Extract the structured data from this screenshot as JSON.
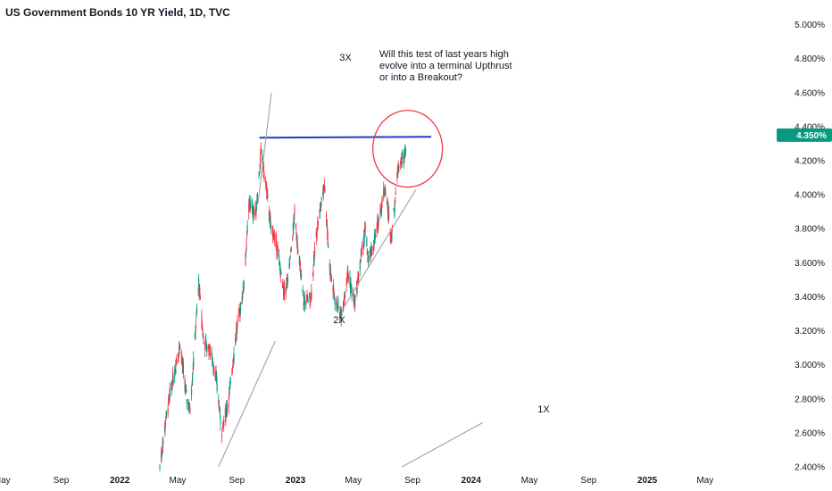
{
  "title": "US Government Bonds 10 YR Yield, 1D, TVC",
  "chart_data": {
    "type": "candlestick",
    "title": "US Government Bonds 10 YR Yield, 1D, TVC",
    "y_axis": {
      "position": "right",
      "range": [
        2.4,
        5.05
      ],
      "ticks": [
        {
          "value": 5.0,
          "label": "5.000%"
        },
        {
          "value": 4.8,
          "label": "4.800%"
        },
        {
          "value": 4.6,
          "label": "4.600%"
        },
        {
          "value": 4.4,
          "label": "4.400%"
        },
        {
          "value": 4.2,
          "label": "4.200%"
        },
        {
          "value": 4.0,
          "label": "4.000%"
        },
        {
          "value": 3.8,
          "label": "3.800%"
        },
        {
          "value": 3.6,
          "label": "3.600%"
        },
        {
          "value": 3.4,
          "label": "3.400%"
        },
        {
          "value": 3.2,
          "label": "3.200%"
        },
        {
          "value": 3.0,
          "label": "3.000%"
        },
        {
          "value": 2.8,
          "label": "2.800%"
        },
        {
          "value": 2.6,
          "label": "2.600%"
        },
        {
          "value": 2.4,
          "label": "2.400%"
        }
      ]
    },
    "x_axis": {
      "range": [
        "2021-04-01",
        "2025-06-15"
      ],
      "ticks": [
        {
          "date": "2021-05-01",
          "label": "May",
          "year": false
        },
        {
          "date": "2021-09-01",
          "label": "Sep",
          "year": false
        },
        {
          "date": "2022-01-01",
          "label": "2022",
          "year": true
        },
        {
          "date": "2022-05-01",
          "label": "May",
          "year": false
        },
        {
          "date": "2022-09-01",
          "label": "Sep",
          "year": false
        },
        {
          "date": "2023-01-01",
          "label": "2023",
          "year": true
        },
        {
          "date": "2023-05-01",
          "label": "May",
          "year": false
        },
        {
          "date": "2023-09-01",
          "label": "Sep",
          "year": false
        },
        {
          "date": "2024-01-01",
          "label": "2024",
          "year": true
        },
        {
          "date": "2024-05-01",
          "label": "May",
          "year": false
        },
        {
          "date": "2024-09-01",
          "label": "Sep",
          "year": false
        },
        {
          "date": "2025-01-01",
          "label": "2025",
          "year": true
        },
        {
          "date": "2025-05-01",
          "label": "May",
          "year": false
        }
      ]
    },
    "price_path": [
      [
        "2022-03-25",
        2.4
      ],
      [
        "2022-04-08",
        2.7
      ],
      [
        "2022-04-20",
        2.9
      ],
      [
        "2022-05-06",
        3.12
      ],
      [
        "2022-05-20",
        2.8
      ],
      [
        "2022-05-27",
        2.74
      ],
      [
        "2022-06-14",
        3.48
      ],
      [
        "2022-06-24",
        3.13
      ],
      [
        "2022-07-08",
        3.08
      ],
      [
        "2022-07-20",
        2.93
      ],
      [
        "2022-08-01",
        2.6
      ],
      [
        "2022-08-15",
        2.79
      ],
      [
        "2022-08-31",
        3.19
      ],
      [
        "2022-09-15",
        3.45
      ],
      [
        "2022-09-27",
        3.95
      ],
      [
        "2022-10-10",
        3.88
      ],
      [
        "2022-10-21",
        4.24
      ],
      [
        "2022-11-01",
        4.05
      ],
      [
        "2022-11-10",
        3.82
      ],
      [
        "2022-11-23",
        3.7
      ],
      [
        "2022-12-07",
        3.42
      ],
      [
        "2022-12-16",
        3.48
      ],
      [
        "2022-12-30",
        3.88
      ],
      [
        "2023-01-18",
        3.37
      ],
      [
        "2023-02-02",
        3.4
      ],
      [
        "2023-02-15",
        3.81
      ],
      [
        "2023-03-02",
        4.06
      ],
      [
        "2023-03-13",
        3.57
      ],
      [
        "2023-03-24",
        3.38
      ],
      [
        "2023-04-06",
        3.29
      ],
      [
        "2023-04-20",
        3.54
      ],
      [
        "2023-05-04",
        3.36
      ],
      [
        "2023-05-18",
        3.65
      ],
      [
        "2023-05-26",
        3.8
      ],
      [
        "2023-06-01",
        3.6
      ],
      [
        "2023-06-15",
        3.73
      ],
      [
        "2023-07-06",
        4.05
      ],
      [
        "2023-07-19",
        3.75
      ],
      [
        "2023-08-03",
        4.18
      ],
      [
        "2023-08-15",
        4.22
      ],
      [
        "2023-08-21",
        4.34
      ]
    ],
    "last_value": {
      "value": 4.35,
      "label": "4.350%",
      "color": "#089981"
    },
    "candle_colors": {
      "up": "#089981",
      "down": "#f23645"
    },
    "grid": false,
    "annotations": [
      {
        "type": "trendline",
        "name": "resistance-line",
        "from": [
          "2022-10-18",
          4.335
        ],
        "to": [
          "2023-10-10",
          4.34
        ],
        "color": "#1e3ec8"
      },
      {
        "type": "trendline",
        "name": "trendline-3x",
        "from": [
          "2022-10-15",
          3.95
        ],
        "to": [
          "2022-11-12",
          4.6
        ],
        "color": "#a8a8a8"
      },
      {
        "type": "trendline",
        "name": "trendline-2x",
        "from": [
          "2022-07-25",
          2.4
        ],
        "to": [
          "2022-11-20",
          3.14
        ],
        "color": "#a8a8a8"
      },
      {
        "type": "trendline",
        "name": "trendline-1x-lower",
        "from": [
          "2023-04-12",
          3.34
        ],
        "to": [
          "2023-09-08",
          4.03
        ],
        "color": "#a8a8a8"
      },
      {
        "type": "trendline",
        "name": "trendline-1x-upper",
        "from": [
          "2023-08-10",
          2.4
        ],
        "to": [
          "2024-01-25",
          2.66
        ],
        "color": "#a8a8a8"
      },
      {
        "type": "ellipse",
        "name": "highlight-circle",
        "center": [
          "2023-08-22",
          4.27
        ],
        "color": "#f23645"
      }
    ],
    "labels": {
      "three_x": "3X",
      "two_x": "2X",
      "one_x": "1X",
      "question": [
        "Will this test of last years high",
        "evolve into a terminal Upthrust",
        "or into a Breakout?"
      ]
    }
  }
}
